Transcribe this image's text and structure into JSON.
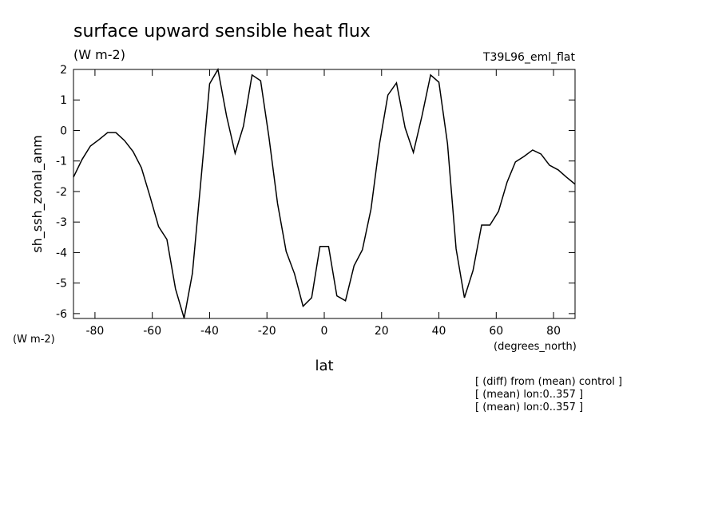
{
  "chart_data": {
    "type": "line",
    "title": "surface upward sensible heat flux",
    "subtitle": "(W m-2)",
    "dataset_label": "T39L96_eml_flat",
    "ylabel": "sh_ssh_zonal_anm",
    "y_units": "(W m-2)",
    "x_units": "(degrees_north)",
    "xlabel": "lat",
    "notes": [
      "[ (diff) from (mean) control ]",
      "[ (mean) lon:0..357 ]",
      "[ (mean) lon:0..357 ]"
    ],
    "x": [
      -87.5,
      -84.5,
      -81.6,
      -78.6,
      -75.6,
      -72.7,
      -69.7,
      -66.7,
      -63.8,
      -60.8,
      -57.8,
      -54.9,
      -51.9,
      -48.9,
      -46.0,
      -43.0,
      -40.0,
      -37.1,
      -34.1,
      -31.1,
      -28.2,
      -25.2,
      -22.2,
      -19.3,
      -16.3,
      -13.3,
      -10.4,
      -7.4,
      -4.4,
      -1.5,
      1.5,
      4.4,
      7.4,
      10.4,
      13.3,
      16.3,
      19.3,
      22.2,
      25.2,
      28.2,
      31.1,
      34.1,
      37.1,
      40.0,
      43.0,
      46.0,
      48.9,
      51.9,
      54.9,
      57.8,
      60.8,
      63.8,
      66.7,
      69.7,
      72.7,
      75.6,
      78.6,
      81.6,
      84.5,
      87.5
    ],
    "series": [
      {
        "color": "#000000",
        "values": [
          -1.53,
          -0.95,
          -0.51,
          -0.3,
          -0.07,
          -0.07,
          -0.33,
          -0.69,
          -1.22,
          -2.16,
          -3.15,
          -3.57,
          -5.19,
          -6.15,
          -4.68,
          -1.6,
          1.53,
          2.0,
          0.48,
          -0.75,
          0.14,
          1.82,
          1.63,
          -0.22,
          -2.39,
          -3.96,
          -4.69,
          -5.76,
          -5.48,
          -3.8,
          -3.8,
          -5.42,
          -5.58,
          -4.43,
          -3.91,
          -2.58,
          -0.43,
          1.16,
          1.56,
          0.09,
          -0.72,
          0.48,
          1.82,
          1.58,
          -0.43,
          -3.88,
          -5.48,
          -4.59,
          -3.1,
          -3.1,
          -2.65,
          -1.69,
          -1.03,
          -0.85,
          -0.64,
          -0.77,
          -1.14,
          -1.29,
          -1.53,
          -1.76
        ]
      }
    ],
    "xlim": [
      -87.5,
      87.5
    ],
    "ylim": [
      -6.16,
      2
    ],
    "xticks": [
      -80,
      -60,
      -40,
      -20,
      0,
      20,
      40,
      60,
      80
    ],
    "yticks": [
      -6,
      -5,
      -4,
      -3,
      -2,
      -1,
      0,
      1,
      2
    ]
  }
}
